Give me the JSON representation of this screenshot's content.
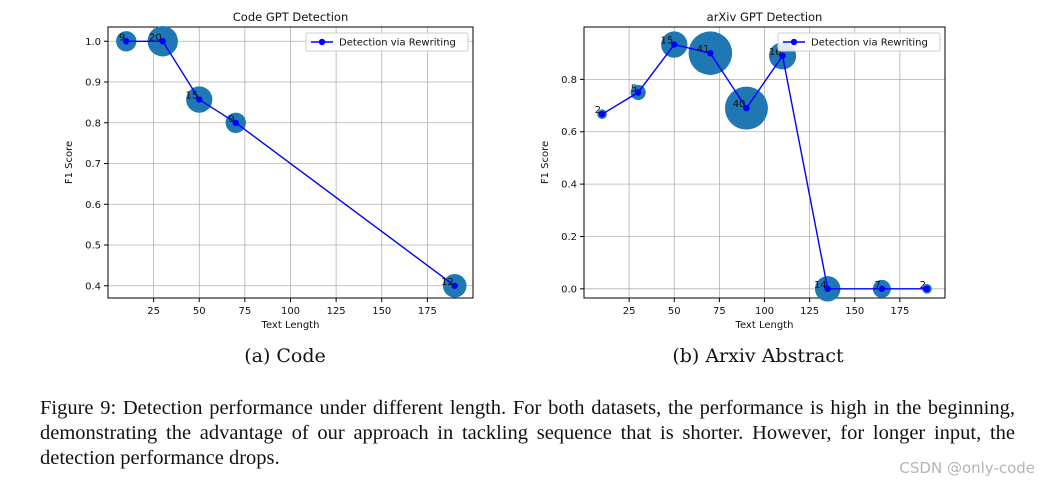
{
  "chart_data": [
    {
      "type": "scatter",
      "title": "Code GPT Detection",
      "xlabel": "Text Length",
      "ylabel": "F1 Score",
      "xlim": [
        0,
        200
      ],
      "ylim": [
        0.37,
        1.035
      ],
      "xticks": [
        25,
        50,
        75,
        100,
        125,
        150,
        175
      ],
      "yticks": [
        0.4,
        0.5,
        0.6,
        0.7,
        0.8,
        0.9,
        1.0
      ],
      "ytick_labels": [
        "0.4",
        "0.5",
        "0.6",
        "0.7",
        "0.8",
        "0.9",
        "1.0"
      ],
      "grid": true,
      "legend": {
        "label": "Detection via Rewriting",
        "position": "top-right"
      },
      "series": [
        {
          "name": "Detection via Rewriting",
          "line_color": "#0000ff",
          "bubble_color": "#1f77b4",
          "x": [
            10,
            30,
            50,
            70,
            190
          ],
          "y": [
            1.0,
            1.0,
            0.857,
            0.8,
            0.4
          ],
          "counts": [
            "9",
            "20",
            "15",
            "9",
            "12"
          ],
          "sizes": [
            9,
            20,
            15,
            9,
            12
          ]
        }
      ]
    },
    {
      "type": "scatter",
      "title": "arXiv GPT Detection",
      "xlabel": "Text Length",
      "ylabel": "F1 Score",
      "xlim": [
        0,
        200
      ],
      "ylim": [
        -0.035,
        1.0
      ],
      "xticks": [
        25,
        50,
        75,
        100,
        125,
        150,
        175
      ],
      "yticks": [
        0.0,
        0.2,
        0.4,
        0.6,
        0.8
      ],
      "ytick_labels": [
        "0.0",
        "0.2",
        "0.4",
        "0.6",
        "0.8"
      ],
      "grid": true,
      "legend": {
        "label": "Detection via Rewriting",
        "position": "top-right"
      },
      "series": [
        {
          "name": "Detection via Rewriting",
          "line_color": "#0000ff",
          "bubble_color": "#1f77b4",
          "x": [
            10,
            30,
            50,
            70,
            90,
            110,
            135,
            165,
            190
          ],
          "y": [
            0.667,
            0.75,
            0.933,
            0.9,
            0.69,
            0.89,
            0.0,
            0.0,
            0.0
          ],
          "counts": [
            "2",
            "5",
            "15",
            "41",
            "40",
            "16",
            "14",
            "7",
            "2"
          ],
          "sizes": [
            2,
            5,
            15,
            41,
            40,
            16,
            14,
            7,
            2
          ]
        }
      ]
    }
  ],
  "captions": {
    "a": "(a) Code",
    "b": "(b) Arxiv Abstract",
    "figure": "Figure 9: Detection performance under different length. For both datasets, the performance is high in the beginning, demonstrating the advantage of our approach in tackling sequence that is shorter. However, for longer input, the detection performance drops."
  },
  "watermark": "CSDN @only-code"
}
